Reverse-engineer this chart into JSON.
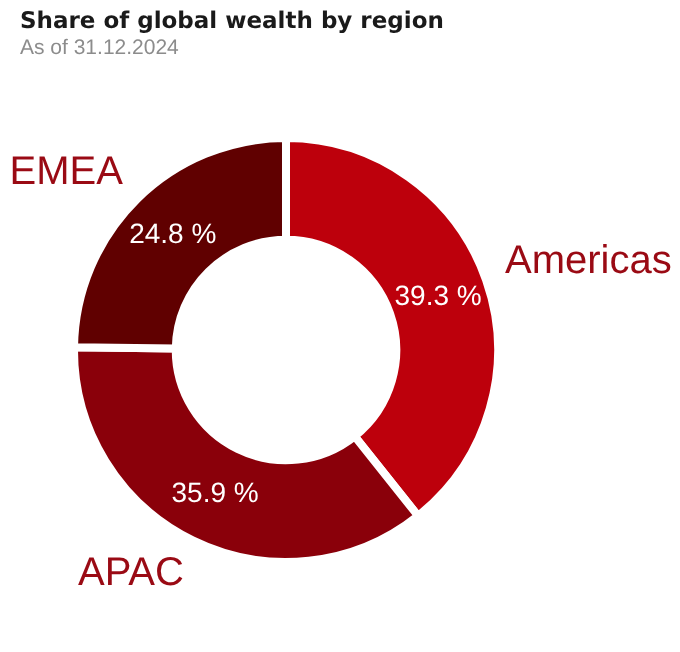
{
  "chart_data": {
    "type": "donut",
    "title": "Share of global wealth by region",
    "subtitle": "As of 31.12.2024",
    "categories": [
      "Americas",
      "APAC",
      "EMEA"
    ],
    "values": [
      39.3,
      35.9,
      24.8
    ],
    "colors": [
      "#bd000c",
      "#8a000a",
      "#600000"
    ],
    "value_labels": [
      "39.3 %",
      "35.9 %",
      "24.8 %"
    ],
    "legend": false
  }
}
